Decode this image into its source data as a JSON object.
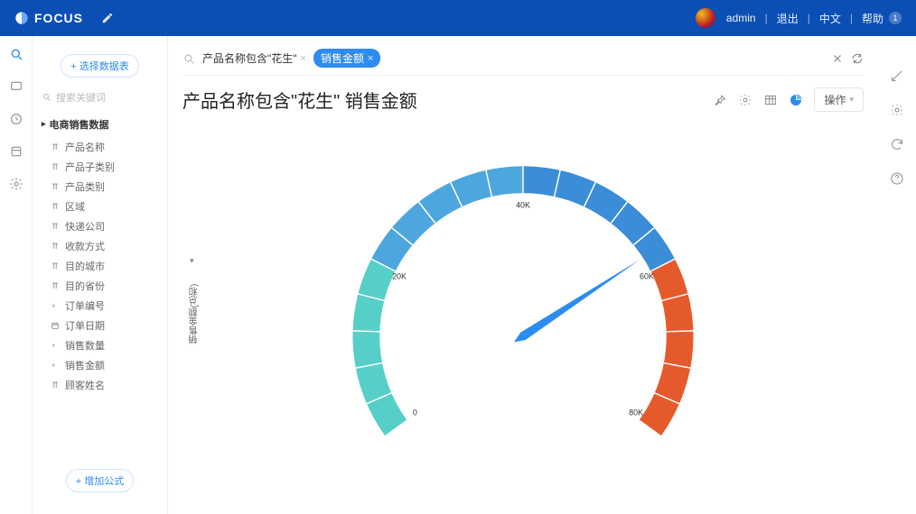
{
  "header": {
    "brand": "FOCUS",
    "username": "admin",
    "logout": "退出",
    "language": "中文",
    "help": "帮助",
    "help_badge": "1"
  },
  "datapanel": {
    "select_source_btn": "+ 选择数据表",
    "search_placeholder": "搜索关键词",
    "group_name": "电商销售数据",
    "fields": [
      {
        "label": "产品名称",
        "icon": "text"
      },
      {
        "label": "产品子类别",
        "icon": "text"
      },
      {
        "label": "产品类别",
        "icon": "text"
      },
      {
        "label": "区域",
        "icon": "text"
      },
      {
        "label": "快递公司",
        "icon": "text"
      },
      {
        "label": "收款方式",
        "icon": "text"
      },
      {
        "label": "目的城市",
        "icon": "text"
      },
      {
        "label": "目的省份",
        "icon": "text"
      },
      {
        "label": "订单编号",
        "icon": "number"
      },
      {
        "label": "订单日期",
        "icon": "date"
      },
      {
        "label": "销售数量",
        "icon": "number"
      },
      {
        "label": "销售金额",
        "icon": "number"
      },
      {
        "label": "顾客姓名",
        "icon": "text"
      }
    ],
    "add_formula_btn": "+ 增加公式"
  },
  "searchbar": {
    "chip1": "产品名称包含\"花生\"",
    "chip2": "销售金额"
  },
  "page_title": "产品名称包含\"花生\"  销售金额",
  "ops_button": "操作",
  "chart": {
    "type": "gauge",
    "y_axis_label": "销售金额(总和)",
    "min": 0,
    "max": 80000,
    "value": 58000,
    "tick_labels": [
      {
        "angle": -126,
        "text": "0"
      },
      {
        "angle": -63,
        "text": "20K"
      },
      {
        "angle": 0,
        "text": "40K"
      },
      {
        "angle": 63,
        "text": "60K"
      },
      {
        "angle": 126,
        "text": "80K"
      }
    ],
    "segments": [
      {
        "from": 0,
        "to": 20000,
        "color": "#56cfc9"
      },
      {
        "from": 20000,
        "to": 40000,
        "color": "#4ea6de"
      },
      {
        "from": 40000,
        "to": 60000,
        "color": "#3a8dd6"
      },
      {
        "from": 60000,
        "to": 80000,
        "color": "#e55a2b"
      }
    ],
    "needle_color": "#2d8cf0",
    "tick_divisions_per_segment": 5,
    "radius_outer": 190,
    "radius_inner": 160,
    "label_radius": 146,
    "label_fontsize": 9,
    "label_color": "#333333",
    "background_color": "#ffffff",
    "tick_stroke": "#ffffff"
  }
}
